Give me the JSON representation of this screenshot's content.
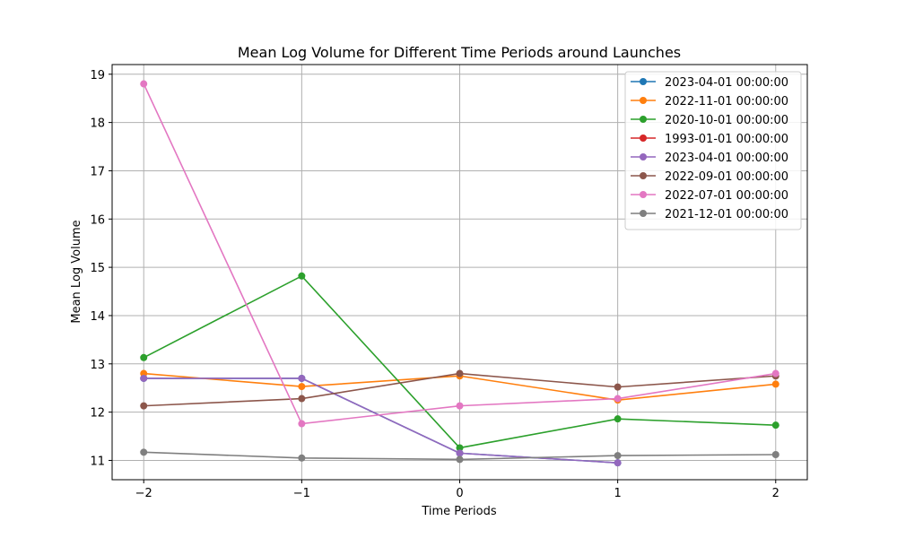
{
  "chart_data": {
    "type": "line",
    "title": "Mean Log Volume for Different Time Periods around Launches",
    "xlabel": "Time Periods",
    "ylabel": "Mean Log Volume",
    "x": [
      -2,
      -1,
      0,
      1,
      2
    ],
    "xticks": [
      -2,
      -1,
      0,
      1,
      2
    ],
    "xtick_labels": [
      "−2",
      "−1",
      "0",
      "1",
      "2"
    ],
    "xlim": [
      -2.2,
      2.2
    ],
    "yticks": [
      11,
      12,
      13,
      14,
      15,
      16,
      17,
      18,
      19
    ],
    "ylim": [
      10.6,
      19.2
    ],
    "grid": true,
    "legend_position": "top-right",
    "series": [
      {
        "name": "2023-04-01 00:00:00",
        "color": "#1f77b4",
        "values": [
          12.7,
          12.7,
          11.15,
          10.95,
          null
        ]
      },
      {
        "name": "2022-11-01 00:00:00",
        "color": "#ff7f0e",
        "values": [
          12.8,
          12.53,
          12.75,
          12.25,
          12.58
        ]
      },
      {
        "name": "2020-10-01 00:00:00",
        "color": "#2ca02c",
        "values": [
          13.13,
          14.82,
          11.26,
          11.86,
          11.73
        ]
      },
      {
        "name": "1993-01-01 00:00:00",
        "color": "#d62728",
        "values": [
          null,
          null,
          null,
          null,
          null
        ]
      },
      {
        "name": "2023-04-01 00:00:00",
        "color": "#9467bd",
        "values": [
          12.7,
          12.7,
          11.15,
          10.95,
          null
        ]
      },
      {
        "name": "2022-09-01 00:00:00",
        "color": "#8c564b",
        "values": [
          12.13,
          12.28,
          12.8,
          12.52,
          12.75
        ]
      },
      {
        "name": "2022-07-01 00:00:00",
        "color": "#e377c2",
        "values": [
          18.8,
          11.76,
          12.13,
          12.28,
          12.8
        ]
      },
      {
        "name": "2021-12-01 00:00:00",
        "color": "#7f7f7f",
        "values": [
          11.17,
          11.05,
          11.02,
          11.1,
          11.12
        ]
      }
    ]
  }
}
